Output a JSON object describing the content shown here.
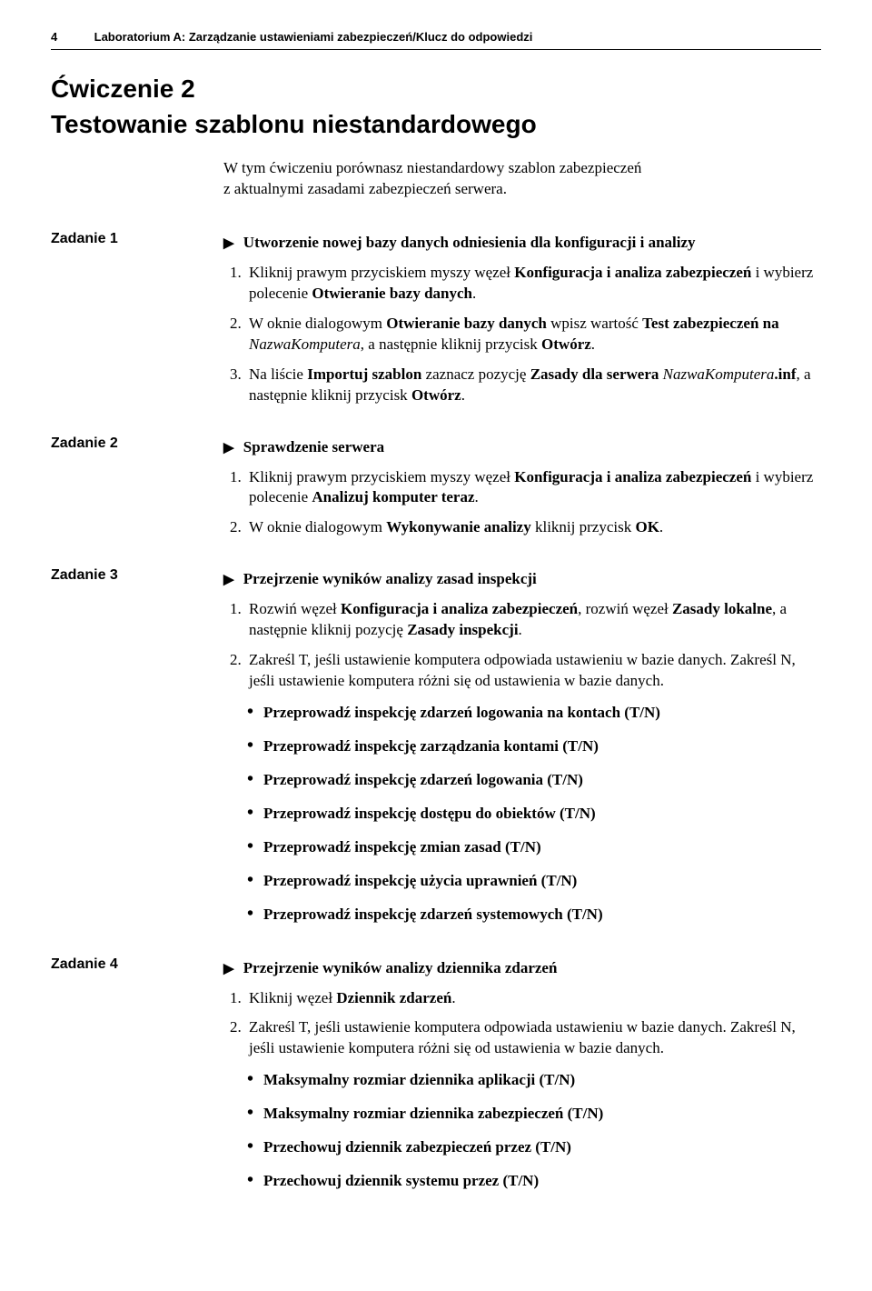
{
  "header": {
    "page_number": "4",
    "running_title": "Laboratorium A: Zarządzanie ustawieniami zabezpieczeń/Klucz do odpowiedzi"
  },
  "exercise": {
    "title": "Ćwiczenie 2",
    "subtitle": "Testowanie szablonu niestandardowego"
  },
  "intro": {
    "line1": "W tym ćwiczeniu porównasz niestandardowy szablon zabezpieczeń",
    "line2": "z aktualnymi zasadami zabezpieczeń serwera."
  },
  "task_labels": {
    "t1": "Zadanie 1",
    "t2": "Zadanie 2",
    "t3": "Zadanie 3",
    "t4": "Zadanie 4"
  },
  "task1": {
    "head": "Utworzenie nowej bazy danych odniesienia dla konfiguracji i analizy",
    "li1a": "Kliknij prawym przyciskiem myszy węzeł ",
    "li1b": "Konfiguracja i analiza zabezpieczeń",
    "li1c": " i wybierz polecenie ",
    "li1d": "Otwieranie bazy danych",
    "li1e": ".",
    "li2a": "W oknie dialogowym ",
    "li2b": "Otwieranie bazy danych",
    "li2c": " wpisz wartość ",
    "li2d": "Test zabezpieczeń na ",
    "li2e": "NazwaKomputera",
    "li2f": ", a następnie kliknij przycisk ",
    "li2g": "Otwórz",
    "li2h": ".",
    "li3a": "Na liście ",
    "li3b": "Importuj szablon",
    "li3c": " zaznacz pozycję ",
    "li3d": "Zasady dla serwera ",
    "li3e": "NazwaKomputera",
    "li3f": ".inf",
    "li3g": ", a następnie kliknij przycisk ",
    "li3h": "Otwórz",
    "li3i": "."
  },
  "task2": {
    "head": "Sprawdzenie serwera",
    "li1a": "Kliknij prawym przyciskiem myszy węzeł ",
    "li1b": "Konfiguracja i analiza zabezpieczeń",
    "li1c": " i wybierz polecenie ",
    "li1d": "Analizuj komputer teraz",
    "li1e": ".",
    "li2a": "W oknie dialogowym ",
    "li2b": "Wykonywanie analizy",
    "li2c": " kliknij przycisk ",
    "li2d": "OK",
    "li2e": "."
  },
  "task3": {
    "head": "Przejrzenie wyników analizy zasad inspekcji",
    "li1a": "Rozwiń węzeł ",
    "li1b": "Konfiguracja i analiza zabezpieczeń",
    "li1c": ", rozwiń węzeł ",
    "li1d": "Zasady lokalne",
    "li1e": ", a następnie kliknij pozycję ",
    "li1f": "Zasady inspekcji",
    "li1g": ".",
    "li2": "Zakreśl T, jeśli ustawienie komputera odpowiada ustawieniu w bazie danych. Zakreśl N, jeśli ustawienie komputera różni się od ustawienia w bazie danych.",
    "b1": "Przeprowadź inspekcję zdarzeń logowania na kontach (T/N)",
    "b2": "Przeprowadź inspekcję zarządzania kontami (T/N)",
    "b3": "Przeprowadź inspekcję zdarzeń logowania (T/N)",
    "b4": "Przeprowadź inspekcję dostępu do obiektów (T/N)",
    "b5": "Przeprowadź inspekcję zmian zasad (T/N)",
    "b6": "Przeprowadź inspekcję użycia uprawnień (T/N)",
    "b7": "Przeprowadź inspekcję zdarzeń systemowych (T/N)"
  },
  "task4": {
    "head": "Przejrzenie wyników analizy dziennika zdarzeń",
    "li1a": "Kliknij węzeł ",
    "li1b": "Dziennik zdarzeń",
    "li1c": ".",
    "li2": "Zakreśl T, jeśli ustawienie komputera odpowiada ustawieniu w bazie danych. Zakreśl N, jeśli ustawienie komputera różni się od ustawienia w bazie danych.",
    "b1": "Maksymalny rozmiar dziennika aplikacji (T/N)",
    "b2": "Maksymalny rozmiar dziennika zabezpieczeń (T/N)",
    "b3": "Przechowuj dziennik zabezpieczeń przez (T/N)",
    "b4": "Przechowuj dziennik systemu przez (T/N)"
  }
}
